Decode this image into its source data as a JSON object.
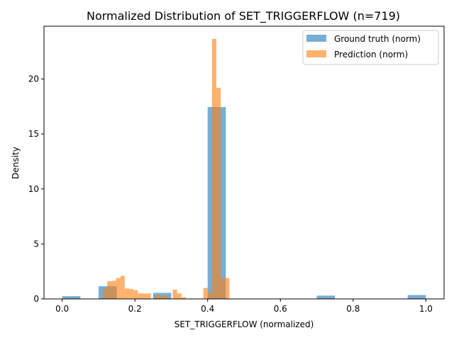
{
  "chart_data": {
    "type": "bar",
    "title": "Normalized Distribution of SET_TRIGGERFLOW (n=719)",
    "xlabel": "SET_TRIGGERFLOW (normalized)",
    "ylabel": "Density",
    "xlim": [
      -0.05,
      1.05
    ],
    "ylim": [
      0,
      24.8
    ],
    "xticks": [
      0.0,
      0.2,
      0.4,
      0.6,
      0.8,
      1.0
    ],
    "xtick_labels": [
      "0.0",
      "0.2",
      "0.4",
      "0.6",
      "0.8",
      "1.0"
    ],
    "yticks": [
      0,
      5,
      10,
      15,
      20
    ],
    "ytick_labels": [
      "0",
      "5",
      "10",
      "15",
      "20"
    ],
    "legend_position": "top-right",
    "grid": false,
    "series": [
      {
        "name": "Ground truth (norm)",
        "color": "#1f77b4",
        "opacity": 0.6,
        "bins": [
          {
            "x0": 0.0,
            "x1": 0.05,
            "value": 0.25
          },
          {
            "x0": 0.1,
            "x1": 0.15,
            "value": 1.15
          },
          {
            "x0": 0.25,
            "x1": 0.3,
            "value": 0.55
          },
          {
            "x0": 0.4,
            "x1": 0.45,
            "value": 17.45
          },
          {
            "x0": 0.7,
            "x1": 0.75,
            "value": 0.3
          },
          {
            "x0": 0.95,
            "x1": 1.0,
            "value": 0.35
          }
        ]
      },
      {
        "name": "Prediction (norm)",
        "color": "#ff7f0e",
        "opacity": 0.6,
        "bins": [
          {
            "x0": 0.112,
            "x1": 0.124,
            "value": 0.95
          },
          {
            "x0": 0.124,
            "x1": 0.136,
            "value": 1.6
          },
          {
            "x0": 0.136,
            "x1": 0.148,
            "value": 1.65
          },
          {
            "x0": 0.148,
            "x1": 0.16,
            "value": 1.9
          },
          {
            "x0": 0.16,
            "x1": 0.172,
            "value": 2.1
          },
          {
            "x0": 0.172,
            "x1": 0.184,
            "value": 0.95
          },
          {
            "x0": 0.184,
            "x1": 0.196,
            "value": 0.9
          },
          {
            "x0": 0.196,
            "x1": 0.208,
            "value": 0.8
          },
          {
            "x0": 0.208,
            "x1": 0.22,
            "value": 0.5
          },
          {
            "x0": 0.22,
            "x1": 0.232,
            "value": 0.5
          },
          {
            "x0": 0.232,
            "x1": 0.244,
            "value": 0.5
          },
          {
            "x0": 0.256,
            "x1": 0.268,
            "value": 0.35
          },
          {
            "x0": 0.268,
            "x1": 0.28,
            "value": 0.3
          },
          {
            "x0": 0.28,
            "x1": 0.292,
            "value": 0.25
          },
          {
            "x0": 0.304,
            "x1": 0.316,
            "value": 0.85
          },
          {
            "x0": 0.316,
            "x1": 0.328,
            "value": 0.5
          },
          {
            "x0": 0.328,
            "x1": 0.34,
            "value": 0.15
          },
          {
            "x0": 0.388,
            "x1": 0.4,
            "value": 1.0
          },
          {
            "x0": 0.4,
            "x1": 0.412,
            "value": 0.6
          },
          {
            "x0": 0.412,
            "x1": 0.424,
            "value": 23.65
          },
          {
            "x0": 0.424,
            "x1": 0.436,
            "value": 19.2
          },
          {
            "x0": 0.436,
            "x1": 0.448,
            "value": 1.9
          },
          {
            "x0": 0.448,
            "x1": 0.46,
            "value": 1.9
          }
        ]
      }
    ]
  }
}
